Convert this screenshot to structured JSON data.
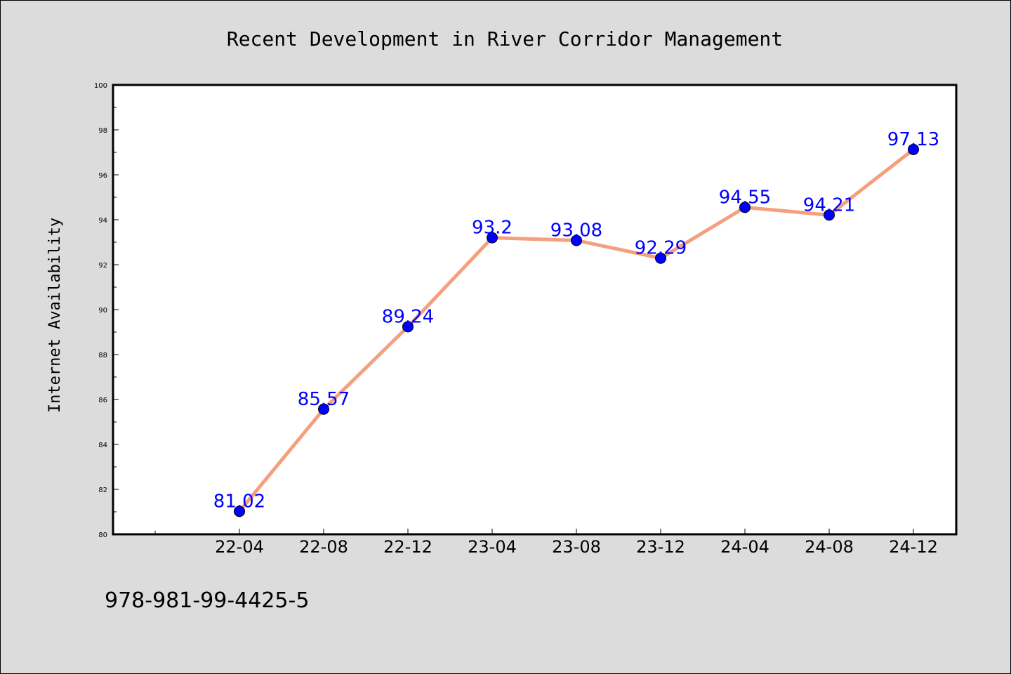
{
  "chart_data": {
    "type": "line",
    "title": "Recent Development in River Corridor Management",
    "xlabel": "",
    "ylabel": "Internet Availability",
    "categories": [
      "22-04",
      "22-08",
      "22-12",
      "23-04",
      "23-08",
      "23-12",
      "24-04",
      "24-08",
      "24-12"
    ],
    "series": [
      {
        "values": [
          81.02,
          85.57,
          89.24,
          93.2,
          93.08,
          92.29,
          94.55,
          94.21,
          97.13
        ],
        "data_labels": [
          "81.02",
          "85.57",
          "89.24",
          "93.2",
          "93.08",
          "92.29",
          "94.55",
          "94.21",
          "97.13"
        ]
      }
    ],
    "ylim": [
      80,
      100
    ],
    "yticks": [
      80,
      82,
      84,
      86,
      88,
      90,
      92,
      94,
      96,
      98,
      100
    ],
    "grid": false,
    "legend": "none",
    "colors": {
      "line": "#f4a07e",
      "marker": "#0000ff",
      "labels": "#0000ff",
      "background": "#dcdcdc",
      "plot_background": "#ffffff"
    }
  },
  "footer": {
    "isbn": "978-981-99-4425-5"
  }
}
